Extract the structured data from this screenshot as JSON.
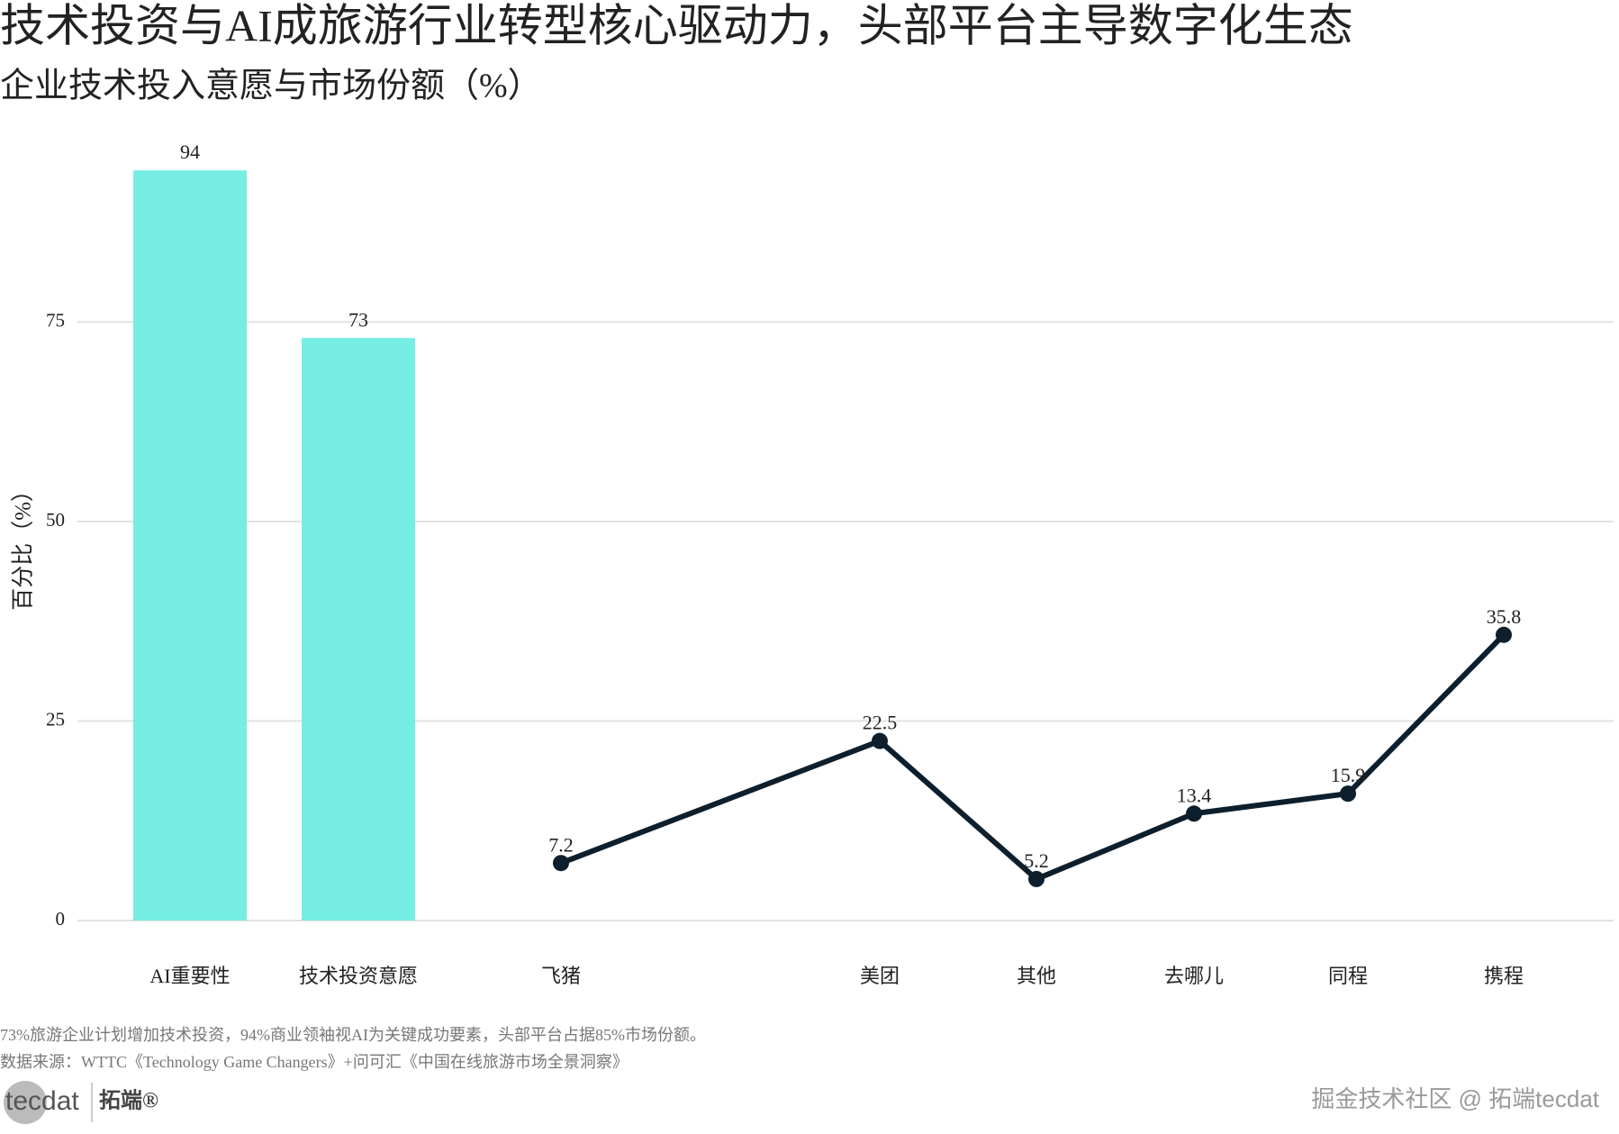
{
  "chart_data": {
    "type": "bar",
    "title": "技术投资与AI成旅游行业转型核心驱动力，头部平台主导数字化生态",
    "subtitle": "企业技术投入意愿与市场份额（%）",
    "y_label": "百分比（%）",
    "categories": [
      "AI重要性",
      "技术投资意愿",
      "飞猪",
      "美团",
      "其他",
      "去哪儿",
      "同程",
      "携程"
    ],
    "series": [
      {
        "type": "bar",
        "color": "#76ede3",
        "values": [
          94,
          73,
          null,
          null,
          null,
          null,
          null,
          null
        ]
      },
      {
        "type": "line",
        "color": "#0d1f2d",
        "values": [
          null,
          null,
          7.2,
          22.5,
          5.2,
          13.4,
          15.9,
          35.8
        ]
      }
    ],
    "ylim": [
      0,
      100
    ],
    "yticks": [
      0,
      25,
      50,
      75
    ],
    "grid": true
  },
  "notes": {
    "caption": "73%旅游企业计划增加技术投资，94%商业领袖视AI为关键成功要素，头部平台占据85%市场份额。",
    "source": "数据来源：WTTC《Technology Game Changers》+问可汇《中国在线旅游市场全景洞察》"
  },
  "logo": {
    "mark": "tecdat",
    "name": "拓端®"
  },
  "watermark": "掘金技术社区 @ 拓端tecdat"
}
